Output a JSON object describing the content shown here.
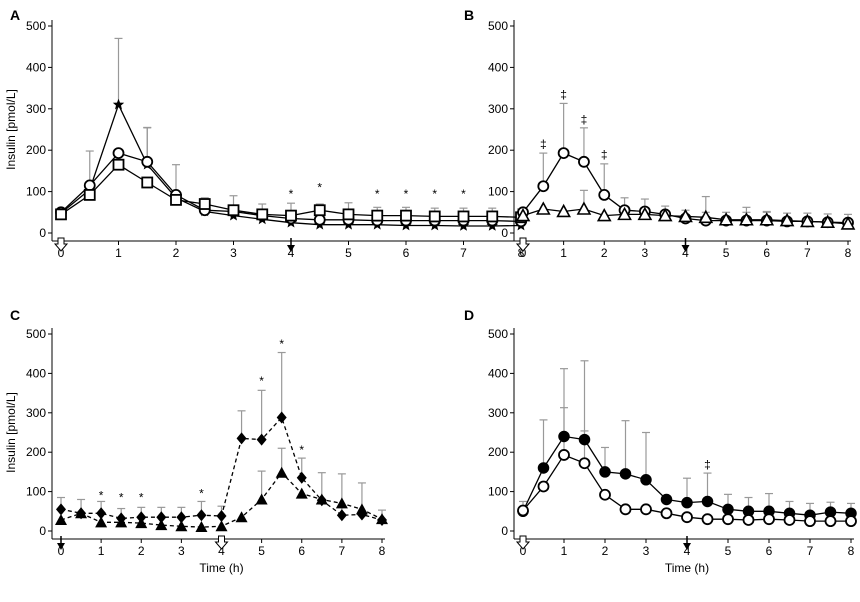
{
  "figure": {
    "background": "#ffffff",
    "line_color": "#000000",
    "error_color": "#999999"
  },
  "chart_data": [
    {
      "panel": "A",
      "type": "line",
      "ylabel": "Insulin  [pmol/L]",
      "xlabel": "",
      "xlim": [
        0,
        8
      ],
      "ylim": [
        0,
        500
      ],
      "xticks": [
        "0",
        "1",
        "2",
        "3",
        "4",
        "5",
        "6",
        "7",
        "8"
      ],
      "yticks": [
        "0",
        "100",
        "200",
        "300",
        "400",
        "500"
      ],
      "arrows": [
        {
          "x": 0,
          "style": "hollow"
        },
        {
          "x": 4,
          "style": "filled"
        }
      ],
      "series": [
        {
          "name": "star",
          "marker": "star",
          "dash": false,
          "x": [
            0,
            0.5,
            1,
            1.5,
            2,
            2.5,
            3,
            3.5,
            4,
            4.5,
            5,
            5.5,
            6,
            6.5,
            7,
            7.5,
            8
          ],
          "y": [
            48,
            105,
            310,
            165,
            85,
            52,
            42,
            33,
            25,
            20,
            20,
            20,
            18,
            18,
            17,
            17,
            18
          ],
          "err": [
            0,
            0,
            160,
            90,
            0,
            0,
            0,
            0,
            0,
            0,
            0,
            0,
            0,
            0,
            0,
            0,
            0
          ]
        },
        {
          "name": "circle",
          "marker": "circle",
          "dash": false,
          "x": [
            0,
            0.5,
            1,
            1.5,
            2,
            2.5,
            3,
            3.5,
            4,
            4.5,
            5,
            5.5,
            6,
            6.5,
            7,
            7.5,
            8
          ],
          "y": [
            50,
            115,
            193,
            172,
            92,
            55,
            52,
            42,
            35,
            32,
            32,
            30,
            30,
            30,
            30,
            30,
            28
          ],
          "err": [
            0,
            83,
            0,
            82,
            73,
            0,
            0,
            0,
            0,
            0,
            0,
            0,
            0,
            0,
            0,
            0,
            0
          ]
        },
        {
          "name": "square",
          "marker": "square",
          "dash": false,
          "x": [
            0,
            0.5,
            1,
            1.5,
            2,
            2.5,
            3,
            3.5,
            4,
            4.5,
            5,
            5.5,
            6,
            6.5,
            7,
            7.5,
            8
          ],
          "y": [
            45,
            92,
            165,
            122,
            80,
            70,
            55,
            45,
            42,
            55,
            45,
            42,
            42,
            40,
            40,
            40,
            38
          ],
          "err": [
            0,
            0,
            0,
            0,
            0,
            15,
            35,
            25,
            30,
            15,
            28,
            20,
            20,
            20,
            20,
            20,
            20
          ]
        }
      ],
      "annotations": [
        {
          "x": 4,
          "y": 85,
          "text": "*"
        },
        {
          "x": 4.5,
          "y": 100,
          "text": "*"
        },
        {
          "x": 5.5,
          "y": 85,
          "text": "*"
        },
        {
          "x": 6,
          "y": 85,
          "text": "*"
        },
        {
          "x": 6.5,
          "y": 85,
          "text": "*"
        },
        {
          "x": 7,
          "y": 85,
          "text": "*"
        }
      ]
    },
    {
      "panel": "B",
      "type": "line",
      "ylabel": "",
      "xlabel": "",
      "xlim": [
        0,
        8
      ],
      "ylim": [
        0,
        500
      ],
      "xticks": [
        "0",
        "1",
        "2",
        "3",
        "4",
        "5",
        "6",
        "7",
        "8"
      ],
      "yticks": [
        "0",
        "100",
        "200",
        "300",
        "400",
        "500"
      ],
      "arrows": [
        {
          "x": 0,
          "style": "hollow"
        },
        {
          "x": 4,
          "style": "filled"
        }
      ],
      "series": [
        {
          "name": "circle",
          "marker": "circle",
          "dash": false,
          "x": [
            0,
            0.5,
            1,
            1.5,
            2,
            2.5,
            3,
            3.5,
            4,
            4.5,
            5,
            5.5,
            6,
            6.5,
            7,
            7.5,
            8
          ],
          "y": [
            50,
            113,
            193,
            172,
            92,
            55,
            52,
            45,
            35,
            30,
            30,
            30,
            30,
            28,
            28,
            26,
            25
          ],
          "err": [
            0,
            80,
            120,
            82,
            75,
            30,
            30,
            20,
            20,
            20,
            20,
            20,
            20,
            20,
            20,
            20,
            20
          ]
        },
        {
          "name": "triangle",
          "marker": "triangle",
          "dash": false,
          "x": [
            0,
            0.5,
            1,
            1.5,
            2,
            2.5,
            3,
            3.5,
            4,
            4.5,
            5,
            5.5,
            6,
            6.5,
            7,
            7.5,
            8
          ],
          "y": [
            42,
            58,
            52,
            58,
            42,
            45,
            45,
            42,
            40,
            38,
            32,
            32,
            32,
            30,
            28,
            26,
            22
          ],
          "err": [
            0,
            0,
            0,
            45,
            0,
            0,
            0,
            0,
            0,
            50,
            0,
            30,
            20,
            0,
            0,
            0,
            0
          ]
        }
      ],
      "annotations": [
        {
          "x": 0.5,
          "y": 205,
          "text": "‡"
        },
        {
          "x": 1,
          "y": 325,
          "text": "‡"
        },
        {
          "x": 1.5,
          "y": 265,
          "text": "‡"
        },
        {
          "x": 2,
          "y": 180,
          "text": "‡"
        }
      ]
    },
    {
      "panel": "C",
      "type": "line",
      "ylabel": "Insulin  [pmol/L]",
      "xlabel": "Time (h)",
      "xlim": [
        0,
        8
      ],
      "ylim": [
        0,
        500
      ],
      "xticks": [
        "0",
        "1",
        "2",
        "3",
        "4",
        "5",
        "6",
        "7",
        "8"
      ],
      "yticks": [
        "0",
        "100",
        "200",
        "300",
        "400",
        "500"
      ],
      "arrows": [
        {
          "x": 0,
          "style": "filled"
        },
        {
          "x": 4,
          "style": "hollow"
        }
      ],
      "series": [
        {
          "name": "diamond",
          "marker": "diamond",
          "dash": true,
          "x": [
            0,
            0.5,
            1,
            1.5,
            2,
            2.5,
            3,
            3.5,
            4,
            4.5,
            5,
            5.5,
            6,
            6.5,
            7,
            7.5,
            8
          ],
          "y": [
            55,
            45,
            45,
            32,
            35,
            35,
            35,
            40,
            38,
            235,
            232,
            288,
            135,
            78,
            40,
            42,
            28
          ],
          "err": [
            30,
            35,
            30,
            25,
            25,
            25,
            25,
            35,
            25,
            70,
            125,
            165,
            50,
            70,
            105,
            80,
            25
          ]
        },
        {
          "name": "triangle-filled",
          "marker": "triangle-filled",
          "dash": true,
          "x": [
            0,
            0.5,
            1,
            1.5,
            2,
            2.5,
            3,
            3.5,
            4,
            4.5,
            5,
            5.5,
            6,
            6.5,
            7,
            7.5,
            8
          ],
          "y": [
            28,
            45,
            22,
            22,
            20,
            15,
            12,
            10,
            12,
            35,
            80,
            148,
            95,
            80,
            70,
            55,
            30
          ],
          "err": [
            0,
            0,
            0,
            0,
            0,
            0,
            0,
            0,
            0,
            0,
            72,
            62,
            0,
            0,
            0,
            0,
            0
          ]
        }
      ],
      "annotations": [
        {
          "x": 1,
          "y": 80,
          "text": "*"
        },
        {
          "x": 1.5,
          "y": 75,
          "text": "*"
        },
        {
          "x": 2,
          "y": 75,
          "text": "*"
        },
        {
          "x": 3.5,
          "y": 85,
          "text": "*"
        },
        {
          "x": 5,
          "y": 370,
          "text": "*"
        },
        {
          "x": 5.5,
          "y": 465,
          "text": "*"
        },
        {
          "x": 6,
          "y": 195,
          "text": "*"
        }
      ]
    },
    {
      "panel": "D",
      "type": "line",
      "ylabel": "",
      "xlabel": "Time (h)",
      "xlim": [
        0,
        8
      ],
      "ylim": [
        0,
        500
      ],
      "xticks": [
        "0",
        "1",
        "2",
        "3",
        "4",
        "5",
        "6",
        "7",
        "8"
      ],
      "yticks": [
        "0",
        "100",
        "200",
        "300",
        "400",
        "500"
      ],
      "arrows": [
        {
          "x": 0,
          "style": "hollow"
        },
        {
          "x": 4,
          "style": "filled"
        }
      ],
      "series": [
        {
          "name": "circle-filled",
          "marker": "circle-filled",
          "dash": false,
          "x": [
            0,
            0.5,
            1,
            1.5,
            2,
            2.5,
            3,
            3.5,
            4,
            4.5,
            5,
            5.5,
            6,
            6.5,
            7,
            7.5,
            8
          ],
          "y": [
            50,
            160,
            240,
            232,
            150,
            145,
            130,
            80,
            72,
            75,
            55,
            50,
            50,
            45,
            40,
            48,
            45
          ],
          "err": [
            25,
            122,
            172,
            200,
            62,
            135,
            120,
            0,
            62,
            72,
            38,
            35,
            45,
            30,
            30,
            25,
            25
          ]
        },
        {
          "name": "circle",
          "marker": "circle",
          "dash": false,
          "x": [
            0,
            0.5,
            1,
            1.5,
            2,
            2.5,
            3,
            3.5,
            4,
            4.5,
            5,
            5.5,
            6,
            6.5,
            7,
            7.5,
            8
          ],
          "y": [
            52,
            113,
            193,
            172,
            92,
            55,
            55,
            45,
            35,
            30,
            30,
            28,
            30,
            28,
            25,
            25,
            25
          ],
          "err": [
            0,
            0,
            120,
            82,
            0,
            0,
            0,
            0,
            0,
            0,
            0,
            0,
            0,
            0,
            0,
            0,
            0
          ]
        }
      ],
      "annotations": [
        {
          "x": 4.5,
          "y": 158,
          "text": "‡"
        }
      ]
    }
  ]
}
